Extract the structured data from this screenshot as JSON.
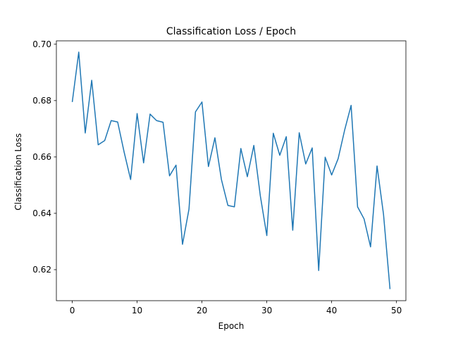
{
  "chart_data": {
    "type": "line",
    "title": "Classification Loss / Epoch",
    "xlabel": "Epoch",
    "ylabel": "Classification Loss",
    "xlim": [
      -2.45,
      51.45
    ],
    "ylim": [
      0.609,
      0.7012
    ],
    "xticks": [
      0,
      10,
      20,
      30,
      40,
      50
    ],
    "yticks": [
      0.62,
      0.64,
      0.66,
      0.68,
      0.7
    ],
    "ytick_labels": [
      "0.62",
      "0.64",
      "0.66",
      "0.68",
      "0.70"
    ],
    "grid": false,
    "line_color": "#1f77b4",
    "series": [
      {
        "x": [
          0,
          1,
          2,
          3,
          4,
          5,
          6,
          7,
          8,
          9,
          10,
          11,
          12,
          13,
          14,
          15,
          16,
          17,
          18,
          19,
          20,
          21,
          22,
          23,
          24,
          25,
          26,
          27,
          28,
          29,
          30,
          31,
          32,
          33,
          34,
          35,
          36,
          37,
          38,
          39,
          40,
          41,
          42,
          43,
          44,
          45,
          46,
          47,
          48,
          49
        ],
        "values": [
          0.6795,
          0.6972,
          0.6685,
          0.6872,
          0.6643,
          0.6658,
          0.6729,
          0.6724,
          0.6617,
          0.652,
          0.6754,
          0.6579,
          0.6752,
          0.6729,
          0.6723,
          0.6533,
          0.6571,
          0.629,
          0.6415,
          0.676,
          0.6795,
          0.6566,
          0.6668,
          0.652,
          0.6428,
          0.6423,
          0.663,
          0.653,
          0.6641,
          0.6462,
          0.6321,
          0.6684,
          0.6606,
          0.6672,
          0.634,
          0.6686,
          0.6575,
          0.6632,
          0.6197,
          0.6599,
          0.6536,
          0.6594,
          0.6695,
          0.6783,
          0.6423,
          0.638,
          0.6281,
          0.6568,
          0.6396,
          0.6131
        ]
      }
    ]
  }
}
